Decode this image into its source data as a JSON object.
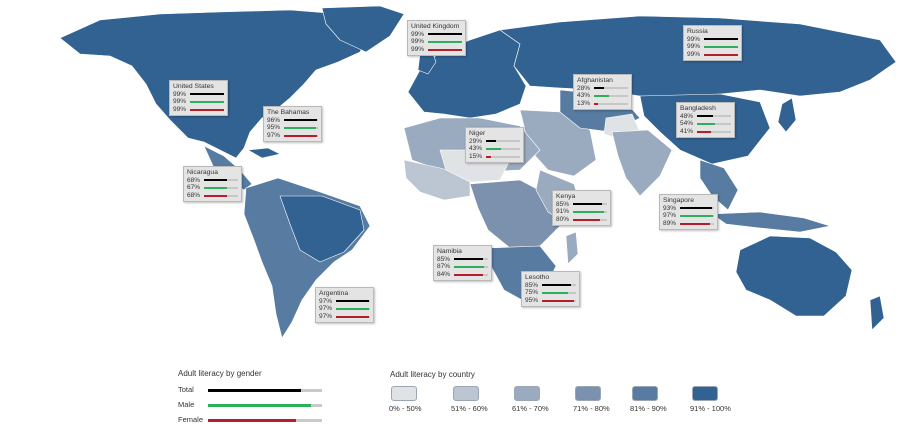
{
  "colors": {
    "total": "#000000",
    "male": "#2eb05a",
    "female": "#b31f2a",
    "track": "#c7c7c7",
    "ocean": "#ffffff",
    "border": "#ffffff"
  },
  "countries": [
    {
      "name": "United Kingdom",
      "total": "99%",
      "male": "99%",
      "female": "99%",
      "total_value": 99,
      "male_value": 99,
      "female_value": 99
    },
    {
      "name": "Russia",
      "total": "99%",
      "male": "99%",
      "female": "99%",
      "total_value": 99,
      "male_value": 99,
      "female_value": 99
    },
    {
      "name": "United States",
      "total": "99%",
      "male": "99%",
      "female": "99%",
      "total_value": 99,
      "male_value": 99,
      "female_value": 99
    },
    {
      "name": "Afghanistan",
      "total": "28%",
      "male": "43%",
      "female": "13%",
      "total_value": 28,
      "male_value": 43,
      "female_value": 13
    },
    {
      "name": "The Bahamas",
      "total": "96%",
      "male": "95%",
      "female": "97%",
      "total_value": 96,
      "male_value": 95,
      "female_value": 97
    },
    {
      "name": "Bangladesh",
      "total": "48%",
      "male": "54%",
      "female": "41%",
      "total_value": 48,
      "male_value": 54,
      "female_value": 41
    },
    {
      "name": "Niger",
      "total": "29%",
      "male": "43%",
      "female": "15%",
      "total_value": 29,
      "male_value": 43,
      "female_value": 15
    },
    {
      "name": "Nicaragua",
      "total": "68%",
      "male": "67%",
      "female": "68%",
      "total_value": 68,
      "male_value": 67,
      "female_value": 68
    },
    {
      "name": "Kenya",
      "total": "85%",
      "male": "91%",
      "female": "80%",
      "total_value": 85,
      "male_value": 91,
      "female_value": 80
    },
    {
      "name": "Singapore",
      "total": "93%",
      "male": "97%",
      "female": "89%",
      "total_value": 93,
      "male_value": 97,
      "female_value": 89
    },
    {
      "name": "Namibia",
      "total": "85%",
      "male": "87%",
      "female": "84%",
      "total_value": 85,
      "male_value": 87,
      "female_value": 84
    },
    {
      "name": "Lesotho",
      "total": "85%",
      "male": "75%",
      "female": "95%",
      "total_value": 85,
      "male_value": 75,
      "female_value": 95
    },
    {
      "name": "Argentina",
      "total": "97%",
      "male": "97%",
      "female": "97%",
      "total_value": 97,
      "male_value": 97,
      "female_value": 97
    }
  ],
  "gender_legend": {
    "title": "Adult literacy by gender",
    "items": [
      {
        "label": "Total",
        "color": "#000000",
        "fraction": 0.82
      },
      {
        "label": "Male",
        "color": "#2eb05a",
        "fraction": 0.9
      },
      {
        "label": "Female",
        "color": "#b31f2a",
        "fraction": 0.77
      }
    ]
  },
  "country_legend": {
    "title": "Adult literacy by country",
    "bins": [
      {
        "label": "0% - 50%",
        "color": "#e0e3e6"
      },
      {
        "label": "51% - 60%",
        "color": "#bcc5d2"
      },
      {
        "label": "61% - 70%",
        "color": "#9aaabf"
      },
      {
        "label": "71% - 80%",
        "color": "#7b91ad"
      },
      {
        "label": "81% - 90%",
        "color": "#577ba1"
      },
      {
        "label": "91% - 100%",
        "color": "#326292"
      }
    ]
  }
}
